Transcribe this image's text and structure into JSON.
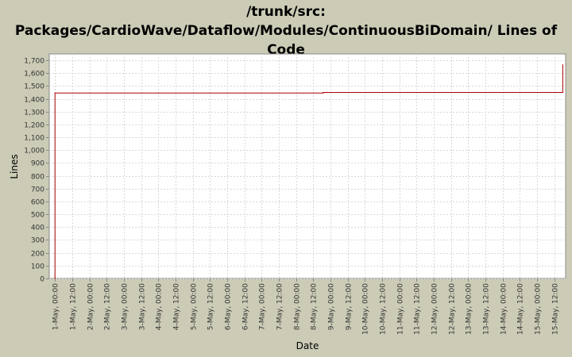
{
  "chart_data": {
    "type": "line",
    "title_lines": [
      "/trunk/src:",
      "Packages/CardioWave/Dataflow/Modules/ContinuousBiDomain/ Lines of",
      "Code"
    ],
    "xlabel": "Date",
    "ylabel": "Lines",
    "ylim": [
      0,
      1750
    ],
    "yticks": [
      0,
      100,
      200,
      300,
      400,
      500,
      600,
      700,
      800,
      900,
      1000,
      1100,
      1200,
      1300,
      1400,
      1500,
      1600,
      1700
    ],
    "ytick_labels": [
      "0",
      "100",
      "200",
      "300",
      "400",
      "500",
      "600",
      "700",
      "800",
      "900",
      "1,000",
      "1,100",
      "1,200",
      "1,300",
      "1,400",
      "1,500",
      "1,600",
      "1,700"
    ],
    "xtick_labels": [
      "1-May, 00:00",
      "1-May, 12:00",
      "2-May, 00:00",
      "2-May, 12:00",
      "3-May, 00:00",
      "3-May, 12:00",
      "4-May, 00:00",
      "4-May, 12:00",
      "5-May, 00:00",
      "5-May, 12:00",
      "6-May, 00:00",
      "6-May, 12:00",
      "7-May, 00:00",
      "7-May, 12:00",
      "8-May, 00:00",
      "8-May, 12:00",
      "9-May, 00:00",
      "9-May, 12:00",
      "10-May, 00:00",
      "10-May, 12:00",
      "11-May, 00:00",
      "11-May, 12:00",
      "12-May, 00:00",
      "12-May, 12:00",
      "13-May, 00:00",
      "13-May, 12:00",
      "14-May, 00:00",
      "14-May, 12:00",
      "15-May, 00:00",
      "15-May, 12:00"
    ],
    "xlim": [
      "2009-04-30 20:00",
      "2009-05-15 20:00"
    ],
    "grid": true,
    "series": [
      {
        "name": "",
        "color": "#aa0000",
        "step": true,
        "points": [
          {
            "x": "2009-05-01 00:00",
            "y": 0
          },
          {
            "x": "2009-05-01 00:00",
            "y": 1445
          },
          {
            "x": "2009-05-08 19:00",
            "y": 1445
          },
          {
            "x": "2009-05-08 19:00",
            "y": 1450
          },
          {
            "x": "2009-05-15 18:00",
            "y": 1450
          },
          {
            "x": "2009-05-15 18:00",
            "y": 1665
          }
        ]
      }
    ]
  }
}
